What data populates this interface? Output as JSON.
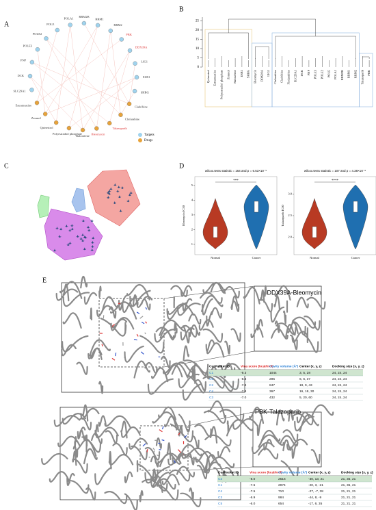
{
  "panels": {
    "a": "A",
    "b": "B",
    "c": "C",
    "d": "D",
    "e": "E"
  },
  "network": {
    "nodes": [
      {
        "label": "POLA1",
        "kind": "target"
      },
      {
        "label": "RRM2B",
        "kind": "target"
      },
      {
        "label": "RRM1",
        "kind": "target"
      },
      {
        "label": "RRM2",
        "kind": "target"
      },
      {
        "label": "PBK",
        "kind": "target",
        "highlight": true
      },
      {
        "label": "DDX39A",
        "kind": "target",
        "highlight": true
      },
      {
        "label": "LIG1",
        "kind": "target"
      },
      {
        "label": "ESR1",
        "kind": "target"
      },
      {
        "label": "SHBG",
        "kind": "target"
      },
      {
        "label": "Cladribine",
        "kind": "drug"
      },
      {
        "label": "Clofarabine",
        "kind": "drug"
      },
      {
        "label": "Talazoparib",
        "kind": "drug",
        "highlight": true
      },
      {
        "label": "Bleomycin",
        "kind": "drug",
        "highlight": true
      },
      {
        "label": "Raloxifene",
        "kind": "drug"
      },
      {
        "label": "Polyestradiol phosphate",
        "kind": "drug"
      },
      {
        "label": "Quinestrol",
        "kind": "drug"
      },
      {
        "label": "Zeranol",
        "kind": "drug"
      },
      {
        "label": "Estramustine",
        "kind": "drug"
      },
      {
        "label": "SLC29A1",
        "kind": "target"
      },
      {
        "label": "DCK",
        "kind": "target"
      },
      {
        "label": "PNP",
        "kind": "target"
      },
      {
        "label": "POLE3",
        "kind": "target"
      },
      {
        "label": "POLE2",
        "kind": "target"
      },
      {
        "label": "POLE",
        "kind": "target"
      }
    ],
    "legend": {
      "target": "Targets",
      "drug": "Drugs"
    }
  },
  "dendrogram": {
    "leaves": [
      "Quinestrol",
      "Estramustine",
      "Polyestradiol phosphate",
      "Zeranol",
      "Raloxifene",
      "ESR1",
      "SHBG",
      "Bleomycin",
      "DDX39A",
      "LIG1",
      "Clofarabine",
      "Cladribine",
      "Fludarabine",
      "SLC29A1",
      "DCK",
      "PNP",
      "POLE3",
      "POLE2",
      "POLE",
      "POLA1",
      "RRM2B",
      "RRM1",
      "RRM2",
      "Talazoparib",
      "PBK"
    ],
    "ylim": [
      0,
      27
    ],
    "yticks": [
      0,
      5,
      10,
      15,
      20,
      25
    ]
  },
  "violins": [
    {
      "title": "wilcox.tests statistic = 164 and p = 6.53×10⁻⁵",
      "ylabel": "Bleomycin IC50",
      "categories": [
        "Normal",
        "Cancer"
      ],
      "significance": "***",
      "ylim": [
        0.3,
        5.6
      ],
      "yticks": [
        1,
        2,
        3,
        4,
        5
      ]
    },
    {
      "title": "wilcox.tests statistic = 107 and p = 4.38×10⁻⁸",
      "ylabel": "Talazoparib IC50",
      "categories": [
        "Normal",
        "Cancer"
      ],
      "significance": "****",
      "ylim": [
        1.6,
        3.4
      ],
      "yticks": [
        {
          "value": 2,
          "label": "2.0"
        },
        {
          "value": 2.5,
          "label": "2.5"
        },
        {
          "value": 3,
          "label": "3.0"
        }
      ]
    }
  ],
  "docking": [
    {
      "title": "DDX39A-Bleomycin",
      "header": [
        "CurPocket ID",
        "Vina score (kcal/mol)",
        "Cavity volume (Å³)",
        "Center (x, y, z)",
        "Docking size (x, y, z)"
      ],
      "rows": [
        [
          "C1",
          "-9.3",
          "1044",
          "3, 5, 28",
          "24, 24, 24"
        ],
        [
          "C5",
          "-8.3",
          "295",
          "6, 6, 37",
          "24, 24, 24"
        ],
        [
          "C2",
          "-7.8",
          "847",
          "19, 9, 43",
          "24, 24, 24"
        ],
        [
          "C4",
          "-7.8",
          "367",
          "16, 18, 30",
          "24, 24, 24"
        ],
        [
          "C3",
          "-7.0",
          "432",
          "5, 20, 60",
          "24, 24, 24"
        ]
      ]
    },
    {
      "title": "PBK-Talazoparib",
      "header": [
        "CurPocket ID",
        "Vina score (kcal/mol)",
        "Cavity volume (Å³)",
        "Center (x, y, z)",
        "Docking size (x, y, z)"
      ],
      "rows": [
        [
          "C2",
          "-8.0",
          "2516",
          "-30, 13, 21",
          "21, 35, 21"
        ],
        [
          "C1",
          "-7.5",
          "2974",
          "-20, 3, -21",
          "21, 35, 21"
        ],
        [
          "C4",
          "-7.5",
          "710",
          "-27, -7, 38",
          "21, 21, 21"
        ],
        [
          "C3",
          "-6.9",
          "984",
          "-44, 8, -9",
          "21, 21, 21"
        ],
        [
          "C5",
          "-6.0",
          "654",
          "-17, 6, 35",
          "21, 21, 21"
        ]
      ]
    }
  ]
}
